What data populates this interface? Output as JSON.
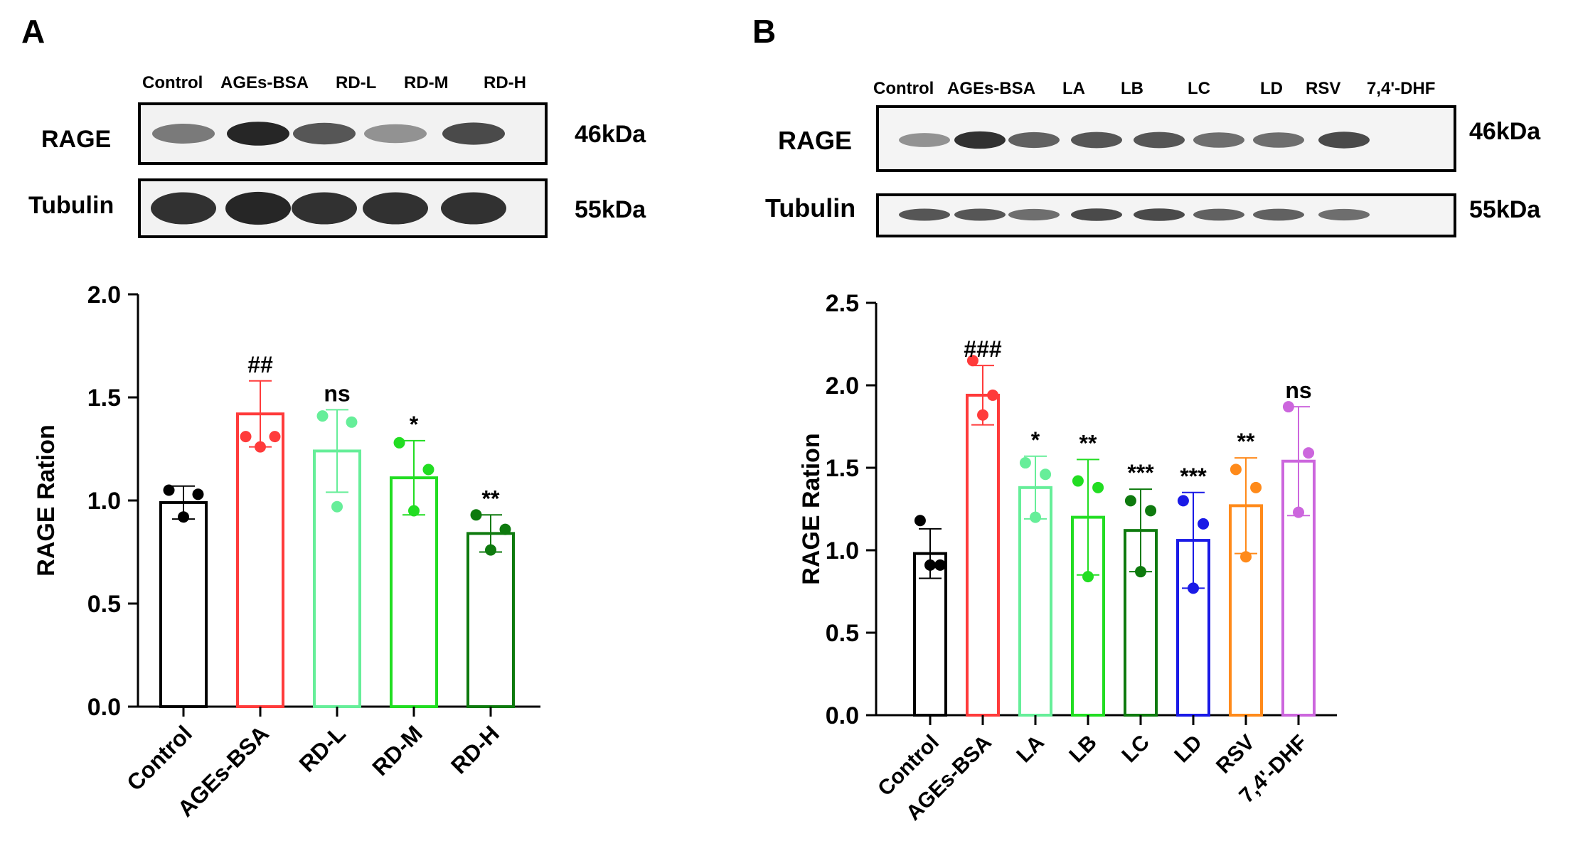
{
  "panels": [
    {
      "label": "A",
      "blot": {
        "lanes": [
          "Control",
          "AGEs-BSA",
          "RD-L",
          "RD-M",
          "RD-H"
        ],
        "rows": [
          {
            "protein": "RAGE",
            "size": "46kDa",
            "band_intensity": [
              0.55,
              0.9,
              0.7,
              0.45,
              0.75
            ]
          },
          {
            "protein": "Tubulin",
            "size": "55kDa",
            "band_intensity": [
              0.85,
              0.9,
              0.85,
              0.85,
              0.85
            ]
          }
        ]
      }
    },
    {
      "label": "B",
      "blot": {
        "lanes": [
          "Control",
          "AGEs-BSA",
          "LA",
          "LB",
          "LC",
          "LD",
          "RSV",
          "7,4'-DHF"
        ],
        "rows": [
          {
            "protein": "RAGE",
            "size": "46kDa",
            "band_intensity": [
              0.45,
              0.85,
              0.65,
              0.7,
              0.7,
              0.6,
              0.6,
              0.75
            ]
          },
          {
            "protein": "Tubulin",
            "size": "55kDa",
            "band_intensity": [
              0.7,
              0.7,
              0.6,
              0.75,
              0.75,
              0.65,
              0.65,
              0.6
            ]
          }
        ]
      }
    }
  ],
  "chart_data": [
    {
      "type": "bar",
      "panel": "A",
      "ylabel": "RAGE Ration",
      "xlabel": "",
      "ylim": [
        0,
        2.0
      ],
      "yticks": [
        "0.0",
        "0.5",
        "1.0",
        "1.5",
        "2.0"
      ],
      "categories": [
        "Control",
        "AGEs-BSA",
        "RD-L",
        "RD-M",
        "RD-H"
      ],
      "values": [
        0.99,
        1.42,
        1.24,
        1.11,
        0.84
      ],
      "errors": [
        0.08,
        0.16,
        0.2,
        0.18,
        0.09
      ],
      "points": [
        [
          1.05,
          1.03,
          0.92
        ],
        [
          1.31,
          1.31,
          1.26
        ],
        [
          1.41,
          1.38,
          0.97
        ],
        [
          1.28,
          1.15,
          0.95
        ],
        [
          0.93,
          0.86,
          0.76
        ]
      ],
      "colors": [
        "#000000",
        "#ff3b3b",
        "#66ee99",
        "#22dd22",
        "#0e7a0e"
      ],
      "annotations": [
        "",
        "##",
        "ns",
        "*",
        "**"
      ]
    },
    {
      "type": "bar",
      "panel": "B",
      "ylabel": "RAGE Ration",
      "xlabel": "",
      "ylim": [
        0,
        2.5
      ],
      "yticks": [
        "0.0",
        "0.5",
        "1.0",
        "1.5",
        "2.0",
        "2.5"
      ],
      "categories": [
        "Control",
        "AGEs-BSA",
        "LA",
        "LB",
        "LC",
        "LD",
        "RSV",
        "7,4'-DHF"
      ],
      "values": [
        0.98,
        1.94,
        1.38,
        1.2,
        1.12,
        1.06,
        1.27,
        1.54
      ],
      "errors": [
        0.15,
        0.18,
        0.19,
        0.35,
        0.25,
        0.29,
        0.29,
        0.33
      ],
      "points": [
        [
          1.18,
          0.91,
          0.91
        ],
        [
          2.15,
          1.94,
          1.82
        ],
        [
          1.53,
          1.46,
          1.2
        ],
        [
          1.42,
          1.38,
          0.84
        ],
        [
          1.3,
          1.24,
          0.87
        ],
        [
          1.3,
          1.16,
          0.77
        ],
        [
          1.49,
          1.38,
          0.96
        ],
        [
          1.87,
          1.59,
          1.23
        ]
      ],
      "colors": [
        "#000000",
        "#ff3b3b",
        "#66ee99",
        "#22dd22",
        "#0e7a0e",
        "#1a1ae6",
        "#ff8a1a",
        "#cc66dd"
      ],
      "annotations": [
        "",
        "###",
        "*",
        "**",
        "***",
        "***",
        "**",
        "ns"
      ]
    }
  ]
}
